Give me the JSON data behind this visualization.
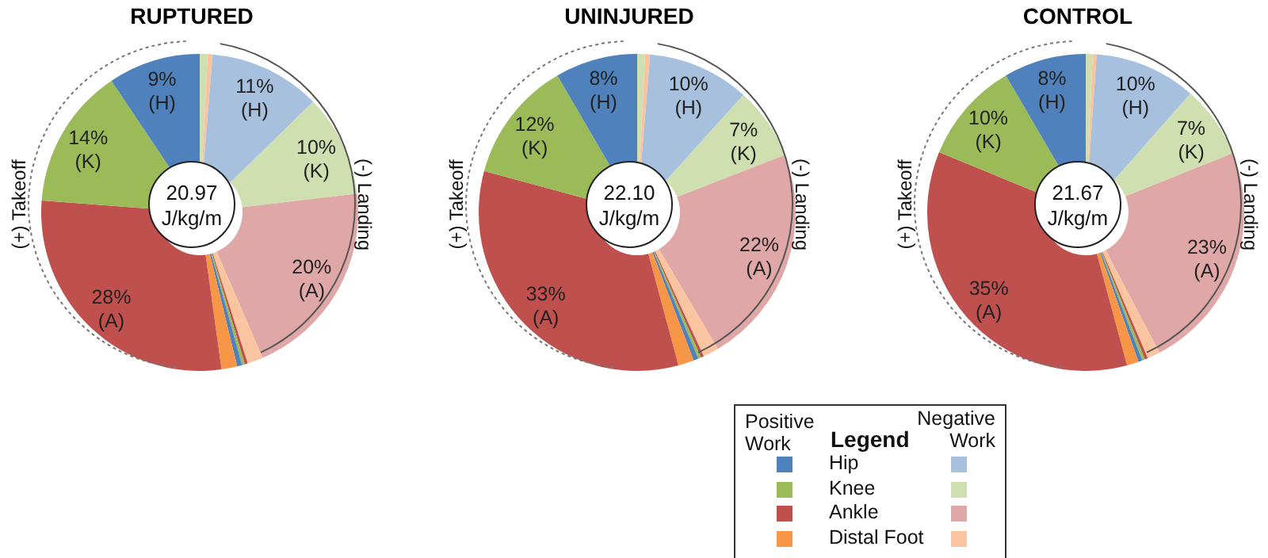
{
  "chart_data": [
    {
      "type": "donut",
      "title": "RUPTURED",
      "categories": [
        null,
        null,
        null,
        null,
        null,
        null,
        null,
        null,
        null,
        null,
        null,
        null,
        null
      ],
      "values": [
        0.8,
        0.5,
        11.4,
        10.4,
        20.4,
        1.6,
        0.3,
        0.3,
        0.5,
        1.6,
        28.4,
        14.4,
        9.4
      ],
      "colors": [
        "#d0dfb0",
        "#fac4a0",
        "#a7c0de",
        "#d0dfb0",
        "#dfa8a7",
        "#fac4a0",
        "#c0504d",
        "#9bbb59",
        "#4f81bd",
        "#f79646",
        "#c0504d",
        "#9bbb59",
        "#4f81bd"
      ],
      "value_labels": [
        null,
        null,
        "11% (H)",
        "10% (K)",
        "20% (A)",
        null,
        null,
        null,
        null,
        null,
        "28% (A)",
        "14% (K)",
        "9% (H)"
      ],
      "annotations": [
        "20.97 J/kg/m",
        "(+) Takeoff",
        "(-) Landing"
      ]
    },
    {
      "type": "donut",
      "title": "UNINJURED",
      "categories": [
        null,
        null,
        null,
        null,
        null,
        null,
        null,
        null,
        null,
        null,
        null,
        null,
        null
      ],
      "values": [
        0.8,
        0.5,
        10.4,
        7.4,
        22.4,
        1.6,
        0.3,
        0.3,
        0.5,
        1.6,
        33.4,
        12.4,
        8.4
      ],
      "colors": [
        "#d0dfb0",
        "#fac4a0",
        "#a7c0de",
        "#d0dfb0",
        "#dfa8a7",
        "#fac4a0",
        "#c0504d",
        "#9bbb59",
        "#4f81bd",
        "#f79646",
        "#c0504d",
        "#9bbb59",
        "#4f81bd"
      ],
      "value_labels": [
        null,
        null,
        "10% (H)",
        "7% (K)",
        "22% (A)",
        null,
        null,
        null,
        null,
        null,
        "33% (A)",
        "12% (K)",
        "8% (H)"
      ],
      "annotations": [
        "22.10 J/kg/m",
        "(+) Takeoff",
        "(-) Landing"
      ]
    },
    {
      "type": "donut",
      "title": "CONTROL",
      "categories": [
        null,
        null,
        null,
        null,
        null,
        null,
        null,
        null,
        null,
        null,
        null,
        null,
        null
      ],
      "values": [
        0.7,
        0.4,
        10.4,
        7.4,
        23.4,
        1.3,
        0.3,
        0.3,
        0.4,
        1.2,
        35.4,
        10.4,
        8.4
      ],
      "colors": [
        "#d0dfb0",
        "#fac4a0",
        "#a7c0de",
        "#d0dfb0",
        "#dfa8a7",
        "#fac4a0",
        "#c0504d",
        "#9bbb59",
        "#4f81bd",
        "#f79646",
        "#c0504d",
        "#9bbb59",
        "#4f81bd"
      ],
      "value_labels": [
        null,
        null,
        "10% (H)",
        "7% (K)",
        "23% (A)",
        null,
        null,
        null,
        null,
        null,
        "35% (A)",
        "10% (K)",
        "8% (H)"
      ],
      "annotations": [
        "21.67 J/kg/m",
        "(+) Takeoff",
        "(-) Landing"
      ]
    },
    {
      "type": "other",
      "title": "Legend",
      "categories": [
        "Hip",
        "Knee",
        "Ankle",
        "Distal Foot"
      ],
      "series": [
        {
          "name": "Positive Work",
          "values": [
            null,
            null,
            null,
            null
          ],
          "colors": [
            "#4f81bd",
            "#9bbb59",
            "#c0504d",
            "#f79646"
          ]
        },
        {
          "name": "Negative Work",
          "values": [
            null,
            null,
            null,
            null
          ],
          "colors": [
            "#a7c0de",
            "#d0dfb0",
            "#dfa8a7",
            "#fac4a0"
          ]
        }
      ]
    }
  ]
}
